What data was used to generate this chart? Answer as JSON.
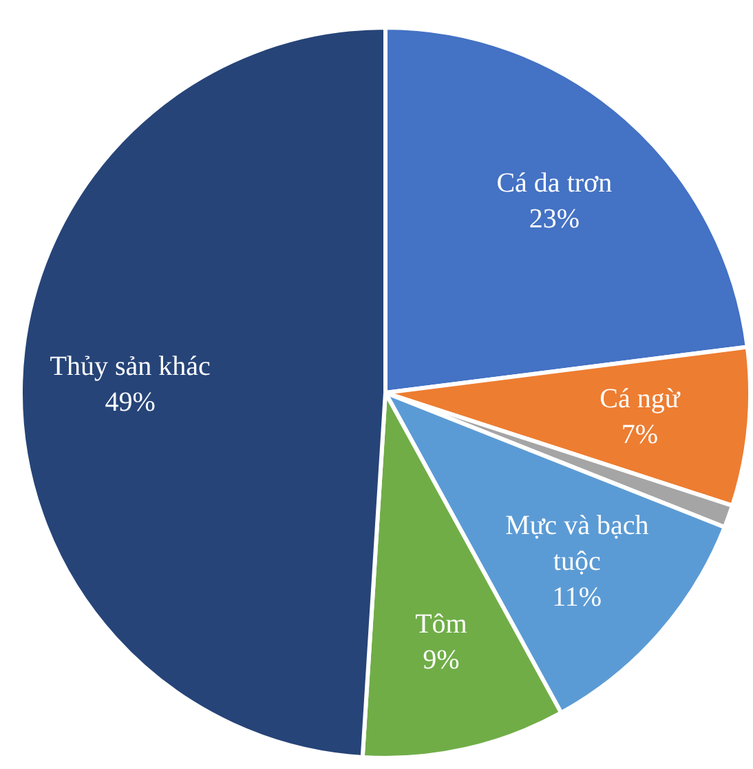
{
  "chart_data": {
    "type": "pie",
    "categories": [
      "Cá da trơn",
      "Cá ngừ",
      null,
      "Mực và bạch tuộc",
      "Tôm",
      "Thủy sản khác"
    ],
    "values": [
      23,
      7,
      1,
      11,
      9,
      49
    ],
    "colors": [
      "#4472c4",
      "#ed7d31",
      "#a5a5a5",
      "#5b9bd5",
      "#70ad47",
      "#264478"
    ],
    "value_labels": [
      "23%",
      "7%",
      null,
      "11%",
      "9%",
      "49%"
    ]
  }
}
